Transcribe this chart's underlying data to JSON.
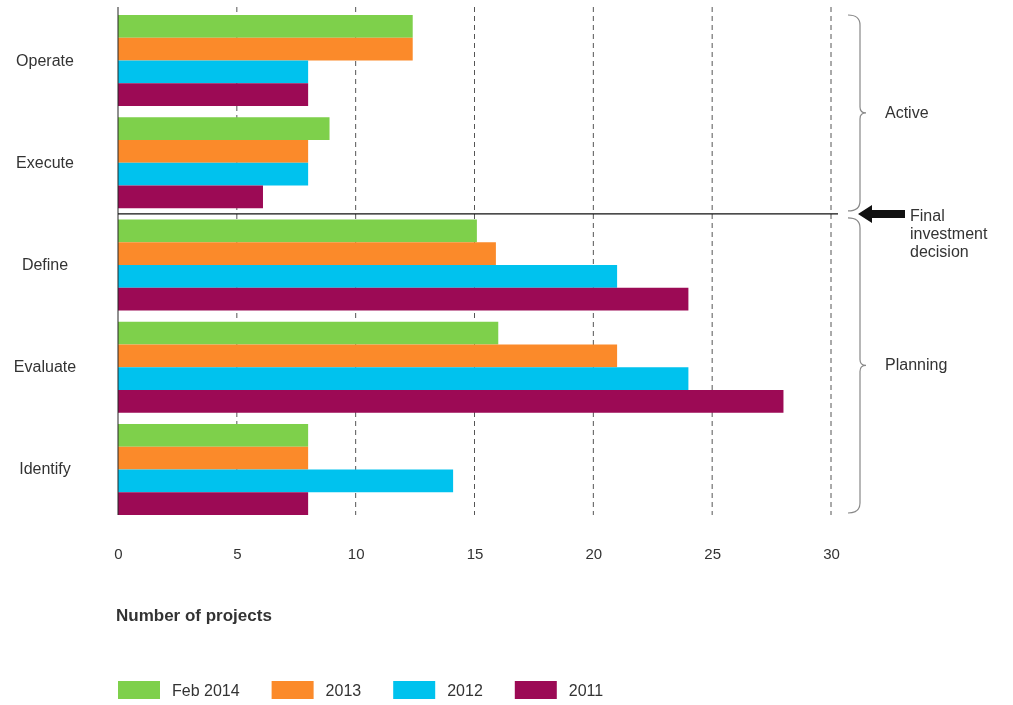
{
  "chart_data": {
    "type": "bar",
    "orientation": "horizontal",
    "xlabel": "Number of projects",
    "categories": [
      "Operate",
      "Execute",
      "Define",
      "Evaluate",
      "Identify"
    ],
    "series": [
      {
        "name": "Feb 2014",
        "color": "#7ed04b",
        "values": [
          12.4,
          8.9,
          15.1,
          16,
          8
        ]
      },
      {
        "name": "2013",
        "color": "#fb8a2a",
        "values": [
          12.4,
          8,
          15.9,
          21,
          8
        ]
      },
      {
        "name": "2012",
        "color": "#00c2ee",
        "values": [
          8,
          8,
          21,
          24,
          14.1
        ]
      },
      {
        "name": "2011",
        "color": "#9c0a55",
        "values": [
          8,
          6.1,
          24,
          28,
          8
        ]
      }
    ],
    "xlim": [
      0,
      30
    ],
    "xticks": [
      0,
      5,
      10,
      15,
      20,
      25,
      30
    ],
    "grid": "x",
    "legend": "bottom",
    "ref_lines": [
      {
        "axis": "y",
        "value": "Define",
        "label": "Final investment decision",
        "color": "#111111"
      }
    ],
    "annotations": [
      "Active",
      "Planning"
    ]
  }
}
